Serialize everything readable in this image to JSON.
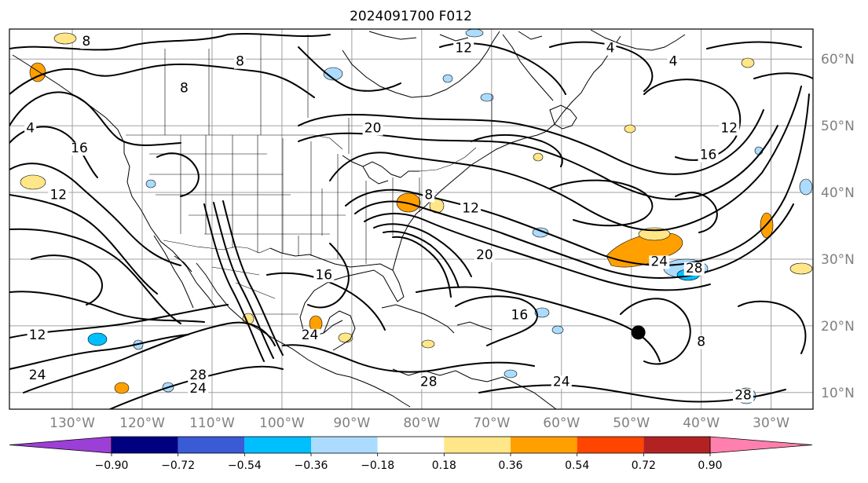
{
  "title": "2024091700 F012",
  "colors": {
    "frame": "#000000",
    "grid": "#a0a0a0",
    "contour": "#000000",
    "axis_label": "#808080"
  },
  "map": {
    "projection": "equirectangular",
    "lon_range": [
      -139,
      -24
    ],
    "lat_range": [
      7.5,
      64.5
    ],
    "lon_ticks": [
      {
        "value": -130,
        "label": "130°W"
      },
      {
        "value": -120,
        "label": "120°W"
      },
      {
        "value": -110,
        "label": "110°W"
      },
      {
        "value": -100,
        "label": "100°W"
      },
      {
        "value": -90,
        "label": "90°W"
      },
      {
        "value": -80,
        "label": "80°W"
      },
      {
        "value": -70,
        "label": "70°W"
      },
      {
        "value": -60,
        "label": "60°W"
      },
      {
        "value": -50,
        "label": "50°W"
      },
      {
        "value": -40,
        "label": "40°W"
      },
      {
        "value": -30,
        "label": "30°W"
      }
    ],
    "lat_ticks": [
      {
        "value": 60,
        "label": "60°N"
      },
      {
        "value": 50,
        "label": "50°N"
      },
      {
        "value": 40,
        "label": "40°N"
      },
      {
        "value": 30,
        "label": "30°N"
      },
      {
        "value": 20,
        "label": "20°N"
      },
      {
        "value": 10,
        "label": "10°N"
      }
    ],
    "grid": true,
    "contour_labels": [
      {
        "text": "8",
        "lon": -128,
        "lat": 62
      },
      {
        "text": "12",
        "lon": -74,
        "lat": 61
      },
      {
        "text": "4",
        "lon": -53,
        "lat": 61
      },
      {
        "text": "4",
        "lon": -44,
        "lat": 59
      },
      {
        "text": "8",
        "lon": -106,
        "lat": 59
      },
      {
        "text": "8",
        "lon": -114,
        "lat": 55
      },
      {
        "text": "4",
        "lon": -136,
        "lat": 49
      },
      {
        "text": "16",
        "lon": -129,
        "lat": 46
      },
      {
        "text": "20",
        "lon": -87,
        "lat": 49
      },
      {
        "text": "12",
        "lon": -36,
        "lat": 49
      },
      {
        "text": "16",
        "lon": -39,
        "lat": 45
      },
      {
        "text": "12",
        "lon": -132,
        "lat": 39
      },
      {
        "text": "8",
        "lon": -79,
        "lat": 39
      },
      {
        "text": "12",
        "lon": -73,
        "lat": 37
      },
      {
        "text": "20",
        "lon": -71,
        "lat": 30
      },
      {
        "text": "24",
        "lon": -46,
        "lat": 29
      },
      {
        "text": "28",
        "lon": -41,
        "lat": 28
      },
      {
        "text": "16",
        "lon": -94,
        "lat": 27
      },
      {
        "text": "16",
        "lon": -66,
        "lat": 21
      },
      {
        "text": "12",
        "lon": -135,
        "lat": 18
      },
      {
        "text": "24",
        "lon": -96,
        "lat": 18
      },
      {
        "text": "8",
        "lon": -40,
        "lat": 17
      },
      {
        "text": "24",
        "lon": -135,
        "lat": 12
      },
      {
        "text": "28",
        "lon": -112,
        "lat": 12
      },
      {
        "text": "24",
        "lon": -112,
        "lat": 10
      },
      {
        "text": "28",
        "lon": -79,
        "lat": 11
      },
      {
        "text": "24",
        "lon": -60,
        "lat": 11
      },
      {
        "text": "28",
        "lon": -34,
        "lat": 9
      }
    ],
    "storm_marker": {
      "lon": -49,
      "lat": 19
    }
  },
  "colorbar": {
    "ticks": [
      "−0.90",
      "−0.72",
      "−0.54",
      "−0.36",
      "−0.18",
      "0.18",
      "0.36",
      "0.54",
      "0.72",
      "0.90"
    ],
    "under_color": "#9c3fd6",
    "over_color": "#ff80ac",
    "colors": [
      "#9c3fd6",
      "#000080",
      "#3a5bd6",
      "#00bfff",
      "#abdcff",
      "#ffffff",
      "#ffe688",
      "#ffa000",
      "#ff4500",
      "#b22222",
      "#ff80ac"
    ]
  }
}
